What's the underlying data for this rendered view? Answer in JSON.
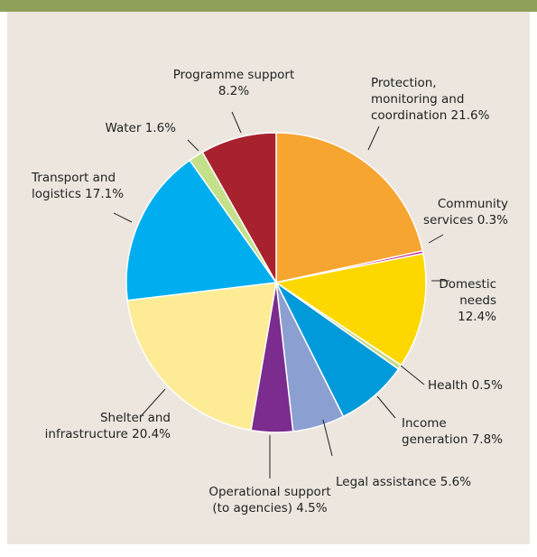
{
  "chart_data": {
    "type": "pie",
    "title": "",
    "start_angle_deg": 0,
    "direction": "clockwise",
    "slices": [
      {
        "label": "Protection, monitoring and coordination",
        "value": 21.6,
        "color": "#f7a531"
      },
      {
        "label": "Community services",
        "value": 0.3,
        "color": "#c02e8e"
      },
      {
        "label": "Domestic needs",
        "value": 12.4,
        "color": "#fdd800"
      },
      {
        "label": "Health",
        "value": 0.5,
        "color": "#c7d98a"
      },
      {
        "label": "Income generation",
        "value": 7.8,
        "color": "#0099da"
      },
      {
        "label": "Legal assistance",
        "value": 5.6,
        "color": "#8c9fd1"
      },
      {
        "label": "Operational support (to agencies)",
        "value": 4.5,
        "color": "#7b2c8e"
      },
      {
        "label": "Shelter and infrastructure",
        "value": 20.4,
        "color": "#feeb95"
      },
      {
        "label": "Transport and logistics",
        "value": 17.1,
        "color": "#00aeef"
      },
      {
        "label": "Water",
        "value": 1.6,
        "color": "#c4e08a"
      },
      {
        "label": "Programme support",
        "value": 8.2,
        "color": "#a8222e"
      }
    ],
    "labels": [
      {
        "slice": 0,
        "lines": [
          "Protection,",
          "monitoring and",
          "coordination 21.6%"
        ]
      },
      {
        "slice": 1,
        "lines": [
          "Community",
          "services 0.3%"
        ]
      },
      {
        "slice": 2,
        "lines": [
          "Domestic",
          "needs",
          "12.4%"
        ]
      },
      {
        "slice": 3,
        "lines": [
          "Health 0.5%"
        ]
      },
      {
        "slice": 4,
        "lines": [
          "Income",
          "generation 7.8%"
        ]
      },
      {
        "slice": 5,
        "lines": [
          "Legal assistance 5.6%"
        ]
      },
      {
        "slice": 6,
        "lines": [
          "Operational support",
          "(to agencies) 4.5%"
        ]
      },
      {
        "slice": 7,
        "lines": [
          "Shelter and",
          "infrastructure 20.4%"
        ]
      },
      {
        "slice": 8,
        "lines": [
          "Transport and",
          "logistics 17.1%"
        ]
      },
      {
        "slice": 9,
        "lines": [
          "Water 1.6%"
        ]
      },
      {
        "slice": 10,
        "lines": [
          "Programme support",
          "8.2%"
        ]
      }
    ],
    "colors": {
      "header_bar": "#8fa05a",
      "panel_background": "#ece6df",
      "slice_border": "#ffffff"
    }
  }
}
